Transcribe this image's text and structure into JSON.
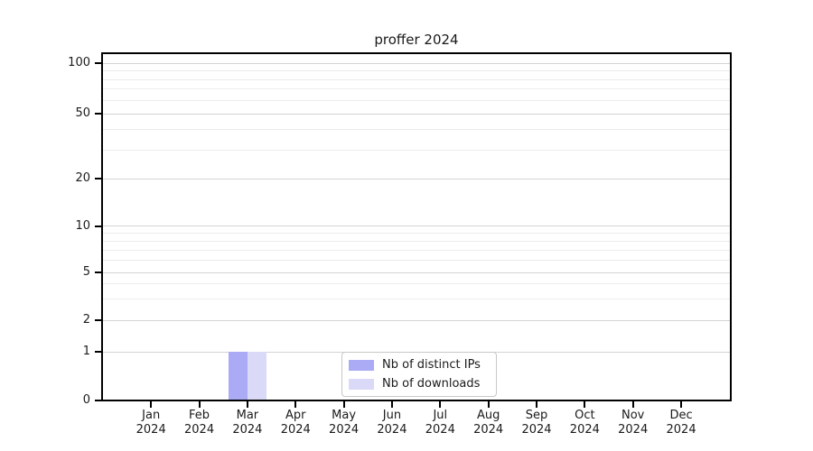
{
  "chart_data": {
    "type": "bar",
    "title": "proffer 2024",
    "categories": [
      "Jan",
      "Feb",
      "Mar",
      "Apr",
      "May",
      "Jun",
      "Jul",
      "Aug",
      "Sep",
      "Oct",
      "Nov",
      "Dec"
    ],
    "category_year": "2024",
    "series": [
      {
        "name": "Nb of distinct IPs",
        "color": "#aaaaf5",
        "values": [
          0,
          0,
          1,
          0,
          0,
          0,
          0,
          0,
          0,
          0,
          0,
          0
        ]
      },
      {
        "name": "Nb of downloads",
        "color": "#dadaf8",
        "values": [
          0,
          0,
          1,
          0,
          0,
          0,
          0,
          0,
          0,
          0,
          0,
          0
        ]
      }
    ],
    "y_axis": {
      "scale": "symlog",
      "major_ticks": [
        0,
        1,
        2,
        5,
        10,
        20,
        50,
        100
      ],
      "minor_gridlines": [
        3,
        4,
        6,
        7,
        8,
        9,
        30,
        40,
        60,
        70,
        80,
        90
      ],
      "range_top": 115
    },
    "legend": {
      "entries": [
        "Nb of distinct IPs",
        "Nb of downloads"
      ]
    },
    "grid": true,
    "colors": {
      "grid_major": "#d4d4d4",
      "grid_minor": "#ececec",
      "axis": "#000000",
      "legend_border": "#c8c8c8"
    }
  }
}
